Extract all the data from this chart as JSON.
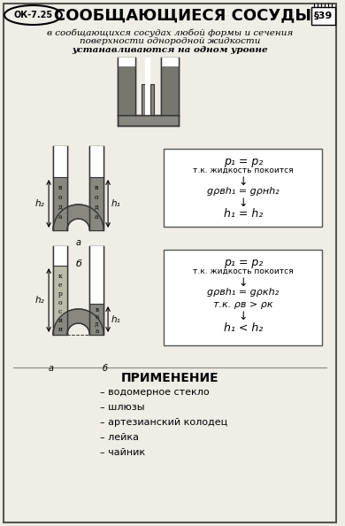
{
  "title": "СООБЩАЮЩИЕСЯ СОСУДЫ",
  "ok_label": "ОК-7.25",
  "section": "§39",
  "subtitle_line1": "в сообщающихся сосудах любой формы и сечения",
  "subtitle_line2": "поверхности однородной жидкости",
  "subtitle_line3": "устанавливаются на одном уровне",
  "box1_lines_italic": [
    "p₁ = p₂",
    "gρвh₁ = gρнh₂",
    "h₁ = h₂"
  ],
  "box1_normal": "т.к. жидкость покоится",
  "box2_lines_italic": [
    "p₁ = p₂",
    "gρвh₁ = gρкh₂",
    "т.к. ρв > ρк",
    "h₁ < h₂"
  ],
  "box2_normal": "т.к. жидкость покоится",
  "apply_title": "ПРИМЕНЕНИЕ",
  "apply_items": [
    "– водомерное стекло",
    "– шлюзы",
    "– артезианский колодец",
    "– лейка",
    "– чайник"
  ],
  "bg_color": "#dedad4",
  "page_color": "#f0ede6",
  "wall_color": "#888880",
  "wall_dark": "#333330",
  "liquid_color": "#999990",
  "liquid_dark": "#555550"
}
